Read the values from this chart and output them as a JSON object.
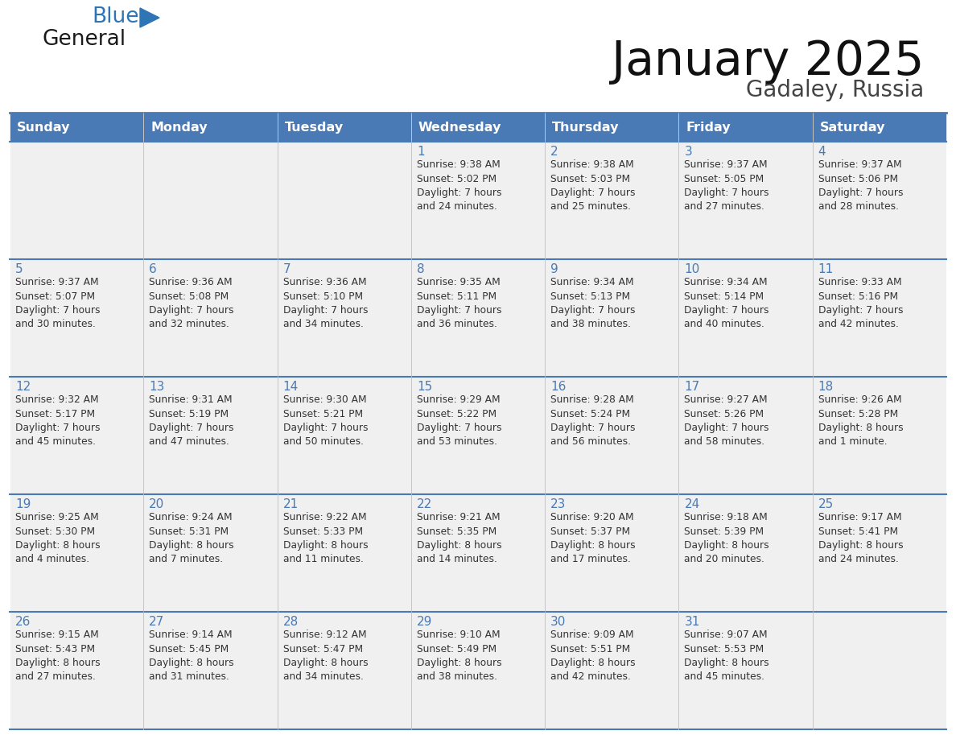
{
  "title": "January 2025",
  "subtitle": "Gadaley, Russia",
  "days_of_week": [
    "Sunday",
    "Monday",
    "Tuesday",
    "Wednesday",
    "Thursday",
    "Friday",
    "Saturday"
  ],
  "header_bg": "#4a7ab5",
  "header_text": "#ffffff",
  "cell_bg_light": "#f0f0f0",
  "cell_bg_white": "#ffffff",
  "border_color": "#4a7ab5",
  "day_number_color": "#4a7ab5",
  "text_color": "#333333",
  "calendar_data": [
    [
      "",
      "",
      "",
      "1\nSunrise: 9:38 AM\nSunset: 5:02 PM\nDaylight: 7 hours\nand 24 minutes.",
      "2\nSunrise: 9:38 AM\nSunset: 5:03 PM\nDaylight: 7 hours\nand 25 minutes.",
      "3\nSunrise: 9:37 AM\nSunset: 5:05 PM\nDaylight: 7 hours\nand 27 minutes.",
      "4\nSunrise: 9:37 AM\nSunset: 5:06 PM\nDaylight: 7 hours\nand 28 minutes."
    ],
    [
      "5\nSunrise: 9:37 AM\nSunset: 5:07 PM\nDaylight: 7 hours\nand 30 minutes.",
      "6\nSunrise: 9:36 AM\nSunset: 5:08 PM\nDaylight: 7 hours\nand 32 minutes.",
      "7\nSunrise: 9:36 AM\nSunset: 5:10 PM\nDaylight: 7 hours\nand 34 minutes.",
      "8\nSunrise: 9:35 AM\nSunset: 5:11 PM\nDaylight: 7 hours\nand 36 minutes.",
      "9\nSunrise: 9:34 AM\nSunset: 5:13 PM\nDaylight: 7 hours\nand 38 minutes.",
      "10\nSunrise: 9:34 AM\nSunset: 5:14 PM\nDaylight: 7 hours\nand 40 minutes.",
      "11\nSunrise: 9:33 AM\nSunset: 5:16 PM\nDaylight: 7 hours\nand 42 minutes."
    ],
    [
      "12\nSunrise: 9:32 AM\nSunset: 5:17 PM\nDaylight: 7 hours\nand 45 minutes.",
      "13\nSunrise: 9:31 AM\nSunset: 5:19 PM\nDaylight: 7 hours\nand 47 minutes.",
      "14\nSunrise: 9:30 AM\nSunset: 5:21 PM\nDaylight: 7 hours\nand 50 minutes.",
      "15\nSunrise: 9:29 AM\nSunset: 5:22 PM\nDaylight: 7 hours\nand 53 minutes.",
      "16\nSunrise: 9:28 AM\nSunset: 5:24 PM\nDaylight: 7 hours\nand 56 minutes.",
      "17\nSunrise: 9:27 AM\nSunset: 5:26 PM\nDaylight: 7 hours\nand 58 minutes.",
      "18\nSunrise: 9:26 AM\nSunset: 5:28 PM\nDaylight: 8 hours\nand 1 minute."
    ],
    [
      "19\nSunrise: 9:25 AM\nSunset: 5:30 PM\nDaylight: 8 hours\nand 4 minutes.",
      "20\nSunrise: 9:24 AM\nSunset: 5:31 PM\nDaylight: 8 hours\nand 7 minutes.",
      "21\nSunrise: 9:22 AM\nSunset: 5:33 PM\nDaylight: 8 hours\nand 11 minutes.",
      "22\nSunrise: 9:21 AM\nSunset: 5:35 PM\nDaylight: 8 hours\nand 14 minutes.",
      "23\nSunrise: 9:20 AM\nSunset: 5:37 PM\nDaylight: 8 hours\nand 17 minutes.",
      "24\nSunrise: 9:18 AM\nSunset: 5:39 PM\nDaylight: 8 hours\nand 20 minutes.",
      "25\nSunrise: 9:17 AM\nSunset: 5:41 PM\nDaylight: 8 hours\nand 24 minutes."
    ],
    [
      "26\nSunrise: 9:15 AM\nSunset: 5:43 PM\nDaylight: 8 hours\nand 27 minutes.",
      "27\nSunrise: 9:14 AM\nSunset: 5:45 PM\nDaylight: 8 hours\nand 31 minutes.",
      "28\nSunrise: 9:12 AM\nSunset: 5:47 PM\nDaylight: 8 hours\nand 34 minutes.",
      "29\nSunrise: 9:10 AM\nSunset: 5:49 PM\nDaylight: 8 hours\nand 38 minutes.",
      "30\nSunrise: 9:09 AM\nSunset: 5:51 PM\nDaylight: 8 hours\nand 42 minutes.",
      "31\nSunrise: 9:07 AM\nSunset: 5:53 PM\nDaylight: 8 hours\nand 45 minutes.",
      ""
    ]
  ],
  "logo_general_color": "#1a1a1a",
  "logo_blue_color": "#2e75b6",
  "logo_triangle_color": "#2e75b6"
}
